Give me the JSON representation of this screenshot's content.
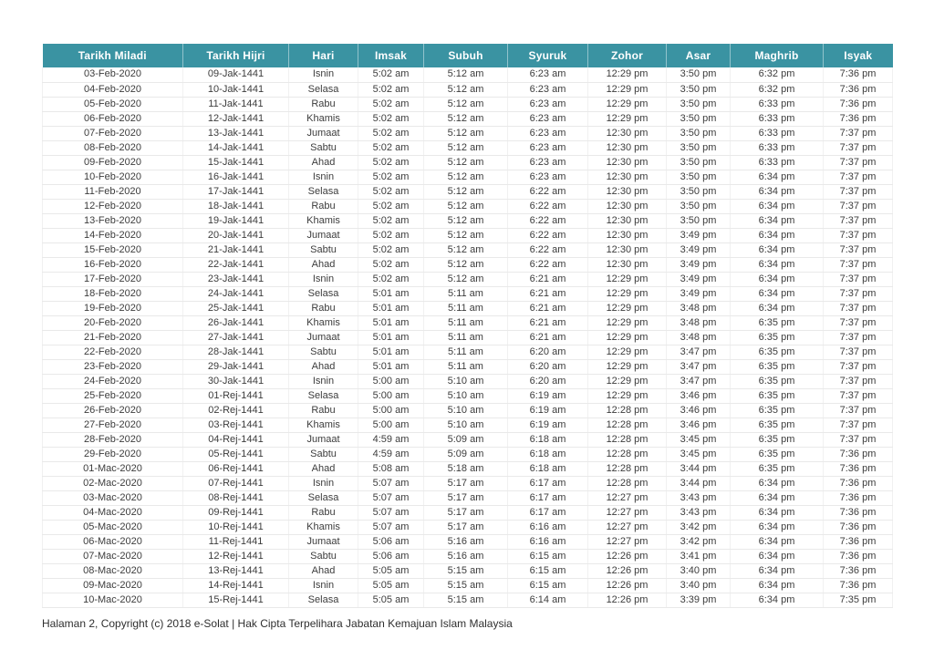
{
  "colors": {
    "header_bg": "#3a93a2",
    "header_text": "#ffffff"
  },
  "table": {
    "columns": [
      "Tarikh Miladi",
      "Tarikh Hijri",
      "Hari",
      "Imsak",
      "Subuh",
      "Syuruk",
      "Zohor",
      "Asar",
      "Maghrib",
      "Isyak"
    ],
    "rows": [
      [
        "03-Feb-2020",
        "09-Jak-1441",
        "Isnin",
        "5:02 am",
        "5:12 am",
        "6:23 am",
        "12:29 pm",
        "3:50 pm",
        "6:32 pm",
        "7:36 pm"
      ],
      [
        "04-Feb-2020",
        "10-Jak-1441",
        "Selasa",
        "5:02 am",
        "5:12 am",
        "6:23 am",
        "12:29 pm",
        "3:50 pm",
        "6:32 pm",
        "7:36 pm"
      ],
      [
        "05-Feb-2020",
        "11-Jak-1441",
        "Rabu",
        "5:02 am",
        "5:12 am",
        "6:23 am",
        "12:29 pm",
        "3:50 pm",
        "6:33 pm",
        "7:36 pm"
      ],
      [
        "06-Feb-2020",
        "12-Jak-1441",
        "Khamis",
        "5:02 am",
        "5:12 am",
        "6:23 am",
        "12:29 pm",
        "3:50 pm",
        "6:33 pm",
        "7:36 pm"
      ],
      [
        "07-Feb-2020",
        "13-Jak-1441",
        "Jumaat",
        "5:02 am",
        "5:12 am",
        "6:23 am",
        "12:30 pm",
        "3:50 pm",
        "6:33 pm",
        "7:37 pm"
      ],
      [
        "08-Feb-2020",
        "14-Jak-1441",
        "Sabtu",
        "5:02 am",
        "5:12 am",
        "6:23 am",
        "12:30 pm",
        "3:50 pm",
        "6:33 pm",
        "7:37 pm"
      ],
      [
        "09-Feb-2020",
        "15-Jak-1441",
        "Ahad",
        "5:02 am",
        "5:12 am",
        "6:23 am",
        "12:30 pm",
        "3:50 pm",
        "6:33 pm",
        "7:37 pm"
      ],
      [
        "10-Feb-2020",
        "16-Jak-1441",
        "Isnin",
        "5:02 am",
        "5:12 am",
        "6:23 am",
        "12:30 pm",
        "3:50 pm",
        "6:34 pm",
        "7:37 pm"
      ],
      [
        "11-Feb-2020",
        "17-Jak-1441",
        "Selasa",
        "5:02 am",
        "5:12 am",
        "6:22 am",
        "12:30 pm",
        "3:50 pm",
        "6:34 pm",
        "7:37 pm"
      ],
      [
        "12-Feb-2020",
        "18-Jak-1441",
        "Rabu",
        "5:02 am",
        "5:12 am",
        "6:22 am",
        "12:30 pm",
        "3:50 pm",
        "6:34 pm",
        "7:37 pm"
      ],
      [
        "13-Feb-2020",
        "19-Jak-1441",
        "Khamis",
        "5:02 am",
        "5:12 am",
        "6:22 am",
        "12:30 pm",
        "3:50 pm",
        "6:34 pm",
        "7:37 pm"
      ],
      [
        "14-Feb-2020",
        "20-Jak-1441",
        "Jumaat",
        "5:02 am",
        "5:12 am",
        "6:22 am",
        "12:30 pm",
        "3:49 pm",
        "6:34 pm",
        "7:37 pm"
      ],
      [
        "15-Feb-2020",
        "21-Jak-1441",
        "Sabtu",
        "5:02 am",
        "5:12 am",
        "6:22 am",
        "12:30 pm",
        "3:49 pm",
        "6:34 pm",
        "7:37 pm"
      ],
      [
        "16-Feb-2020",
        "22-Jak-1441",
        "Ahad",
        "5:02 am",
        "5:12 am",
        "6:22 am",
        "12:30 pm",
        "3:49 pm",
        "6:34 pm",
        "7:37 pm"
      ],
      [
        "17-Feb-2020",
        "23-Jak-1441",
        "Isnin",
        "5:02 am",
        "5:12 am",
        "6:21 am",
        "12:29 pm",
        "3:49 pm",
        "6:34 pm",
        "7:37 pm"
      ],
      [
        "18-Feb-2020",
        "24-Jak-1441",
        "Selasa",
        "5:01 am",
        "5:11 am",
        "6:21 am",
        "12:29 pm",
        "3:49 pm",
        "6:34 pm",
        "7:37 pm"
      ],
      [
        "19-Feb-2020",
        "25-Jak-1441",
        "Rabu",
        "5:01 am",
        "5:11 am",
        "6:21 am",
        "12:29 pm",
        "3:48 pm",
        "6:34 pm",
        "7:37 pm"
      ],
      [
        "20-Feb-2020",
        "26-Jak-1441",
        "Khamis",
        "5:01 am",
        "5:11 am",
        "6:21 am",
        "12:29 pm",
        "3:48 pm",
        "6:35 pm",
        "7:37 pm"
      ],
      [
        "21-Feb-2020",
        "27-Jak-1441",
        "Jumaat",
        "5:01 am",
        "5:11 am",
        "6:21 am",
        "12:29 pm",
        "3:48 pm",
        "6:35 pm",
        "7:37 pm"
      ],
      [
        "22-Feb-2020",
        "28-Jak-1441",
        "Sabtu",
        "5:01 am",
        "5:11 am",
        "6:20 am",
        "12:29 pm",
        "3:47 pm",
        "6:35 pm",
        "7:37 pm"
      ],
      [
        "23-Feb-2020",
        "29-Jak-1441",
        "Ahad",
        "5:01 am",
        "5:11 am",
        "6:20 am",
        "12:29 pm",
        "3:47 pm",
        "6:35 pm",
        "7:37 pm"
      ],
      [
        "24-Feb-2020",
        "30-Jak-1441",
        "Isnin",
        "5:00 am",
        "5:10 am",
        "6:20 am",
        "12:29 pm",
        "3:47 pm",
        "6:35 pm",
        "7:37 pm"
      ],
      [
        "25-Feb-2020",
        "01-Rej-1441",
        "Selasa",
        "5:00 am",
        "5:10 am",
        "6:19 am",
        "12:29 pm",
        "3:46 pm",
        "6:35 pm",
        "7:37 pm"
      ],
      [
        "26-Feb-2020",
        "02-Rej-1441",
        "Rabu",
        "5:00 am",
        "5:10 am",
        "6:19 am",
        "12:28 pm",
        "3:46 pm",
        "6:35 pm",
        "7:37 pm"
      ],
      [
        "27-Feb-2020",
        "03-Rej-1441",
        "Khamis",
        "5:00 am",
        "5:10 am",
        "6:19 am",
        "12:28 pm",
        "3:46 pm",
        "6:35 pm",
        "7:37 pm"
      ],
      [
        "28-Feb-2020",
        "04-Rej-1441",
        "Jumaat",
        "4:59 am",
        "5:09 am",
        "6:18 am",
        "12:28 pm",
        "3:45 pm",
        "6:35 pm",
        "7:37 pm"
      ],
      [
        "29-Feb-2020",
        "05-Rej-1441",
        "Sabtu",
        "4:59 am",
        "5:09 am",
        "6:18 am",
        "12:28 pm",
        "3:45 pm",
        "6:35 pm",
        "7:36 pm"
      ],
      [
        "01-Mac-2020",
        "06-Rej-1441",
        "Ahad",
        "5:08 am",
        "5:18 am",
        "6:18 am",
        "12:28 pm",
        "3:44 pm",
        "6:35 pm",
        "7:36 pm"
      ],
      [
        "02-Mac-2020",
        "07-Rej-1441",
        "Isnin",
        "5:07 am",
        "5:17 am",
        "6:17 am",
        "12:28 pm",
        "3:44 pm",
        "6:34 pm",
        "7:36 pm"
      ],
      [
        "03-Mac-2020",
        "08-Rej-1441",
        "Selasa",
        "5:07 am",
        "5:17 am",
        "6:17 am",
        "12:27 pm",
        "3:43 pm",
        "6:34 pm",
        "7:36 pm"
      ],
      [
        "04-Mac-2020",
        "09-Rej-1441",
        "Rabu",
        "5:07 am",
        "5:17 am",
        "6:17 am",
        "12:27 pm",
        "3:43 pm",
        "6:34 pm",
        "7:36 pm"
      ],
      [
        "05-Mac-2020",
        "10-Rej-1441",
        "Khamis",
        "5:07 am",
        "5:17 am",
        "6:16 am",
        "12:27 pm",
        "3:42 pm",
        "6:34 pm",
        "7:36 pm"
      ],
      [
        "06-Mac-2020",
        "11-Rej-1441",
        "Jumaat",
        "5:06 am",
        "5:16 am",
        "6:16 am",
        "12:27 pm",
        "3:42 pm",
        "6:34 pm",
        "7:36 pm"
      ],
      [
        "07-Mac-2020",
        "12-Rej-1441",
        "Sabtu",
        "5:06 am",
        "5:16 am",
        "6:15 am",
        "12:26 pm",
        "3:41 pm",
        "6:34 pm",
        "7:36 pm"
      ],
      [
        "08-Mac-2020",
        "13-Rej-1441",
        "Ahad",
        "5:05 am",
        "5:15 am",
        "6:15 am",
        "12:26 pm",
        "3:40 pm",
        "6:34 pm",
        "7:36 pm"
      ],
      [
        "09-Mac-2020",
        "14-Rej-1441",
        "Isnin",
        "5:05 am",
        "5:15 am",
        "6:15 am",
        "12:26 pm",
        "3:40 pm",
        "6:34 pm",
        "7:36 pm"
      ],
      [
        "10-Mac-2020",
        "15-Rej-1441",
        "Selasa",
        "5:05 am",
        "5:15 am",
        "6:14 am",
        "12:26 pm",
        "3:39 pm",
        "6:34 pm",
        "7:35 pm"
      ]
    ]
  },
  "footer": {
    "text": "Halaman 2, Copyright (c) 2018 e-Solat | Hak Cipta Terpelihara Jabatan Kemajuan Islam Malaysia"
  }
}
